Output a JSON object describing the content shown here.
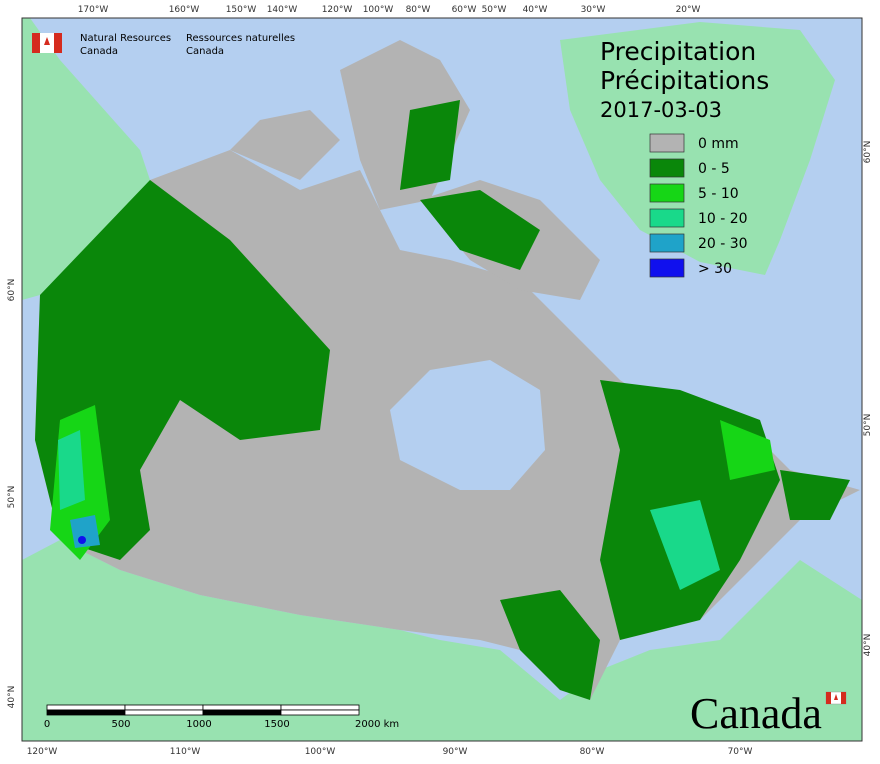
{
  "agency": {
    "en": [
      "Natural Resources",
      "Canada"
    ],
    "fr": [
      "Ressources naturelles",
      "Canada"
    ]
  },
  "title": [
    "Precipitation",
    "Précipitations"
  ],
  "date": "2017-03-03",
  "legend": [
    {
      "label": "0 mm",
      "color": "#b3b3b3"
    },
    {
      "label": "0 - 5",
      "color": "#0a870a"
    },
    {
      "label": "5 - 10",
      "color": "#16d616"
    },
    {
      "label": "10 - 20",
      "color": "#19d98a"
    },
    {
      "label": "20 - 30",
      "color": "#1fa3c9"
    },
    {
      "label": "> 30",
      "color": "#1010ee"
    }
  ],
  "top_longitudes": [
    "170°W",
    "160°W",
    "150°W",
    "140°W",
    "120°W",
    "100°W",
    "80°W",
    "60°W",
    "50°W",
    "40°W",
    "30°W",
    "20°W"
  ],
  "bottom_longitudes": [
    "120°W",
    "110°W",
    "100°W",
    "90°W",
    "80°W",
    "70°W"
  ],
  "left_latitudes": [
    "60°N",
    "50°N",
    "40°N"
  ],
  "right_latitudes": [
    "60°N",
    "50°N",
    "40°N"
  ],
  "scale_bar": [
    "0",
    "500",
    "1000",
    "1500",
    "2000 km"
  ],
  "wordmark": "Canada"
}
